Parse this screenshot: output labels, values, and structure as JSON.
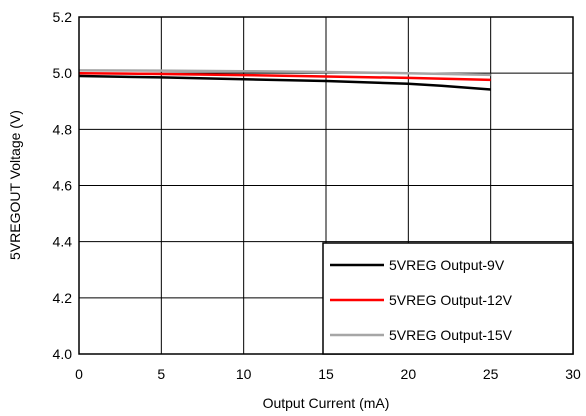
{
  "chart_data": {
    "type": "line",
    "title": "",
    "xlabel": "Output Current (mA)",
    "ylabel": "5VREGOUT Voltage (V)",
    "xlim": [
      0,
      30
    ],
    "ylim": [
      4.0,
      5.2
    ],
    "xticks": [
      0,
      5,
      10,
      15,
      20,
      25,
      30
    ],
    "yticks": [
      4.0,
      4.2,
      4.4,
      4.6,
      4.8,
      5.0,
      5.2
    ],
    "xtick_labels": [
      "0",
      "5",
      "10",
      "15",
      "20",
      "25",
      "30"
    ],
    "ytick_labels": [
      "4.0",
      "4.2",
      "4.4",
      "4.6",
      "4.8",
      "5.0",
      "5.2"
    ],
    "grid": true,
    "legend_position": "bottom-right",
    "series": [
      {
        "name": "5VREG Output-9V",
        "color": "#000000",
        "x": [
          0,
          5,
          10,
          15,
          20,
          22,
          25
        ],
        "y": [
          4.99,
          4.985,
          4.978,
          4.972,
          4.962,
          4.955,
          4.942
        ]
      },
      {
        "name": "5VREG Output-12V",
        "color": "#ff0000",
        "x": [
          0,
          5,
          10,
          15,
          20,
          25
        ],
        "y": [
          5.0,
          4.997,
          4.993,
          4.988,
          4.983,
          4.976
        ]
      },
      {
        "name": "5VREG Output-15V",
        "color": "#a6a6a6",
        "x": [
          0,
          5,
          10,
          15,
          20,
          25
        ],
        "y": [
          5.01,
          5.009,
          5.007,
          5.004,
          5.0,
          4.994
        ]
      }
    ]
  }
}
